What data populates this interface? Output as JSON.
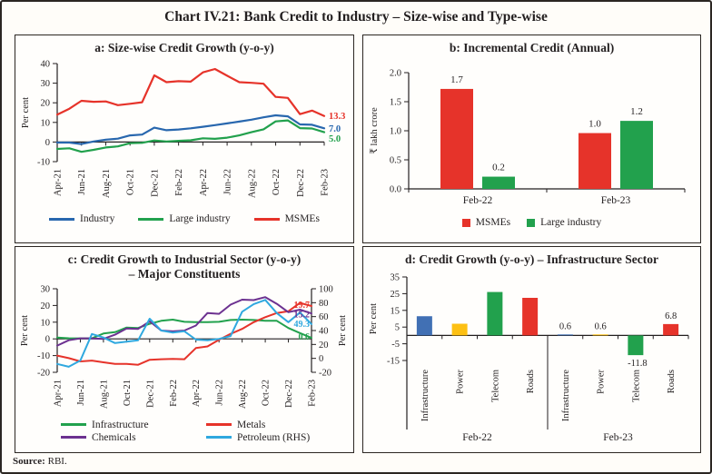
{
  "header": {
    "title": "Chart IV.21: Bank Credit to Industry – Size-wise and Type-wise"
  },
  "footer": {
    "source_label": "Source:",
    "source_value": "RBI."
  },
  "colors": {
    "axis_dark": "#231f20",
    "industry_blue": "#2867AE",
    "large_industry_green": "#22A14D",
    "msme_red": "#E6332A",
    "chemicals_purple": "#6C3190",
    "petroleum_cyan": "#2FA8DF",
    "power_yellow": "#FDC013",
    "infrastructure_bar_blue": "#4170B4"
  },
  "chart_data": [
    {
      "panel": "a",
      "type": "line",
      "title": "a: Size-wise Credit Growth (y-o-y)",
      "ylabel": "Per cent",
      "ylim": [
        -10,
        40
      ],
      "yticks": [
        40,
        30,
        20,
        10,
        0,
        -10
      ],
      "x_tick_labels": [
        "Apr-21",
        "Jun-21",
        "Aug-21",
        "Oct-21",
        "Dec-21",
        "Feb-22",
        "Apr-22",
        "Jun-22",
        "Aug-22",
        "Oct-22",
        "Dec-22",
        "Feb-23"
      ],
      "series": [
        {
          "name": "Industry",
          "color": "#2867AE",
          "end_label": "7.0",
          "values": [
            -0.3,
            -0.3,
            -1.0,
            0.3,
            1.2,
            1.7,
            3.4,
            3.8,
            7.3,
            6.0,
            6.4,
            7.0,
            7.8,
            8.6,
            9.5,
            10.4,
            11.4,
            12.6,
            13.6,
            13.1,
            9.0,
            8.8,
            7.0
          ]
        },
        {
          "name": "Large industry",
          "color": "#22A14D",
          "end_label": "5.0",
          "values": [
            -3.5,
            -3.2,
            -5.0,
            -4.0,
            -2.8,
            -2.2,
            -0.6,
            -0.4,
            0.8,
            0.3,
            0.6,
            0.9,
            1.9,
            1.6,
            2.2,
            3.4,
            5.0,
            6.5,
            10.5,
            11.0,
            7.1,
            6.9,
            5.0
          ]
        },
        {
          "name": "MSMEs",
          "color": "#E6332A",
          "end_label": "13.3",
          "values": [
            14.0,
            17.0,
            21.0,
            20.5,
            20.7,
            18.8,
            19.5,
            20.3,
            34.0,
            30.5,
            31.0,
            30.8,
            35.5,
            37.2,
            33.8,
            30.5,
            30.2,
            29.7,
            23.0,
            22.5,
            14.2,
            16.0,
            13.3
          ]
        }
      ]
    },
    {
      "panel": "b",
      "type": "bar",
      "title": "b: Incremental Credit (Annual)",
      "ylabel": "₹ lakh crore",
      "ylim": [
        0,
        2
      ],
      "yticks": [
        {
          "v": 2,
          "t": "2.0"
        },
        {
          "v": 1.5,
          "t": "1.5"
        },
        {
          "v": 1,
          "t": "1.0"
        },
        {
          "v": 0.5,
          "t": "0.5"
        },
        {
          "v": 0,
          "t": "0.0"
        }
      ],
      "categories": [
        "Feb-22",
        "Feb-23"
      ],
      "series": [
        {
          "name": "MSMEs",
          "color": "#E6332A",
          "values": [
            1.72,
            0.96
          ],
          "labels": [
            "1.7",
            "1.0"
          ]
        },
        {
          "name": "Large industry",
          "color": "#22A14D",
          "values": [
            0.21,
            1.17
          ],
          "labels": [
            "0.2",
            "1.2"
          ]
        }
      ]
    },
    {
      "panel": "c",
      "type": "line-dual-axis",
      "title_line1": "c: Credit Growth to Industrial Sector (y-o-y)",
      "title_line2": "– Major Constituents",
      "ylabel_left": "Per cent",
      "ylabel_right": "Per cent",
      "ylim_left": [
        -20,
        30
      ],
      "yticks_left": [
        30,
        20,
        10,
        0,
        -10,
        -20
      ],
      "ylim_right": [
        -20,
        100
      ],
      "yticks_right": [
        100,
        80,
        60,
        40,
        20,
        0,
        -20
      ],
      "x_tick_labels": [
        "Apr-21",
        "Jun-21",
        "Aug-21",
        "Oct-21",
        "Dec-21",
        "Feb-22",
        "Apr-22",
        "Jun-22",
        "Aug-22",
        "Oct-22",
        "Dec-22",
        "Feb-23"
      ],
      "series": [
        {
          "name": "Infrastructure",
          "color": "#22A14D",
          "axis": "left",
          "end_label": "0.6",
          "values": [
            0.8,
            0.4,
            0.3,
            0.3,
            3.2,
            4.0,
            6.8,
            6.5,
            9.0,
            10.8,
            11.5,
            10.2,
            10.0,
            10.0,
            10.2,
            11.3,
            11.5,
            11.3,
            10.8,
            10.8,
            6.5,
            3.5,
            0.6
          ]
        },
        {
          "name": "Metals",
          "color": "#E6332A",
          "axis": "left",
          "end_label": "19.7",
          "values": [
            -10.0,
            -11.5,
            -13.5,
            -13.0,
            -14.0,
            -15.0,
            -15.0,
            -15.5,
            -12.5,
            -12.2,
            -12.0,
            -12.2,
            -5.5,
            -4.5,
            -0.5,
            3.0,
            6.0,
            10.0,
            13.0,
            15.5,
            16.5,
            21.5,
            19.7
          ]
        },
        {
          "name": "Chemicals",
          "color": "#6C3190",
          "axis": "left",
          "end_label": "15.2",
          "values": [
            -4.0,
            -0.8,
            0.3,
            0.3,
            0.0,
            2.5,
            6.2,
            6.0,
            10.5,
            5.0,
            4.5,
            5.0,
            8.0,
            15.5,
            15.0,
            20.5,
            23.5,
            23.2,
            25.0,
            21.0,
            16.0,
            17.5,
            15.2
          ]
        },
        {
          "name": "Petroleum (RHS)",
          "color": "#2FA8DF",
          "axis": "right",
          "end_label": "49.3",
          "values": [
            -8,
            -12,
            -3,
            35,
            30,
            22,
            24,
            26,
            57,
            40,
            37,
            39,
            27,
            26,
            28,
            32,
            67,
            78,
            84,
            65,
            52,
            66,
            49.3
          ]
        }
      ]
    },
    {
      "panel": "d",
      "type": "grouped-bar",
      "title": "d: Credit Growth (y-o-y) – Infrastructure Sector",
      "ylabel": "Per cent",
      "ylim": [
        -15,
        35
      ],
      "yticks": [
        35,
        25,
        15,
        5,
        -5,
        -15
      ],
      "groups": [
        {
          "label": "Feb-22",
          "bars": [
            {
              "category": "Infrastructure",
              "value": 11.5,
              "label": "",
              "color": "#4170B4"
            },
            {
              "category": "Power",
              "value": 7.0,
              "label": "",
              "color": "#FDC013"
            },
            {
              "category": "Telecom",
              "value": 26.0,
              "label": "",
              "color": "#22A14D"
            },
            {
              "category": "Roads",
              "value": 22.5,
              "label": "",
              "color": "#E6332A"
            }
          ]
        },
        {
          "label": "Feb-23",
          "bars": [
            {
              "category": "Infrastructure",
              "value": 0.6,
              "label": "0.6",
              "color": "#4170B4"
            },
            {
              "category": "Power",
              "value": 0.6,
              "label": "0.6",
              "color": "#FDC013"
            },
            {
              "category": "Telecom",
              "value": -11.8,
              "label": "-11.8",
              "color": "#22A14D"
            },
            {
              "category": "Roads",
              "value": 6.8,
              "label": "6.8",
              "color": "#E6332A"
            }
          ]
        }
      ]
    }
  ]
}
